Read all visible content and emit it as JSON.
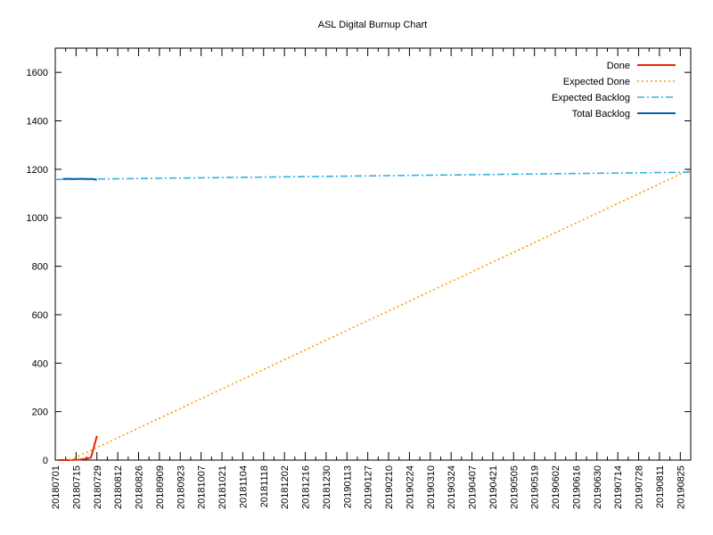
{
  "chart_data": {
    "type": "line",
    "title": "ASL Digital Burnup Chart",
    "xlabel": "",
    "ylabel": "",
    "x_axis": {
      "start": "2018-07-01",
      "end": "2019-09-01",
      "tick_labels": [
        "20180701",
        "20180715",
        "20180729",
        "20180812",
        "20180826",
        "20180909",
        "20180923",
        "20181007",
        "20181021",
        "20181104",
        "20181118",
        "20181202",
        "20181216",
        "20181230",
        "20190113",
        "20190127",
        "20190210",
        "20190224",
        "20190310",
        "20190324",
        "20190407",
        "20190421",
        "20190505",
        "20190519",
        "20190602",
        "20190616",
        "20190630",
        "20190714",
        "20190728",
        "20190811",
        "20190825"
      ]
    },
    "ylim": [
      0,
      1700
    ],
    "y_ticks": [
      0,
      200,
      400,
      600,
      800,
      1000,
      1200,
      1400,
      1600
    ],
    "legend_position": "top-right",
    "grid": false,
    "series": [
      {
        "name": "Done",
        "color": "#e02a00",
        "style": "solid",
        "points": [
          {
            "x": "2018-07-03",
            "y": 0
          },
          {
            "x": "2018-07-10",
            "y": 0
          },
          {
            "x": "2018-07-17",
            "y": 2
          },
          {
            "x": "2018-07-21",
            "y": 5
          },
          {
            "x": "2018-07-25",
            "y": 10
          },
          {
            "x": "2018-07-29",
            "y": 100
          }
        ]
      },
      {
        "name": "Expected Done",
        "color": "#ff9900",
        "style": "dotted",
        "points": [
          {
            "x": "2018-07-11",
            "y": 0
          },
          {
            "x": "2019-09-01",
            "y": 1200
          }
        ]
      },
      {
        "name": "Expected Backlog",
        "color": "#35b0e6",
        "style": "dashdot",
        "points": [
          {
            "x": "2018-07-01",
            "y": 1158
          },
          {
            "x": "2019-09-01",
            "y": 1188
          }
        ]
      },
      {
        "name": "Total Backlog",
        "color": "#0061a8",
        "style": "solid",
        "points": [
          {
            "x": "2018-07-06",
            "y": 1160
          },
          {
            "x": "2018-07-10",
            "y": 1161
          },
          {
            "x": "2018-07-14",
            "y": 1160
          },
          {
            "x": "2018-07-18",
            "y": 1161
          },
          {
            "x": "2018-07-22",
            "y": 1160
          },
          {
            "x": "2018-07-26",
            "y": 1160
          },
          {
            "x": "2018-07-29",
            "y": 1157
          }
        ]
      }
    ]
  }
}
